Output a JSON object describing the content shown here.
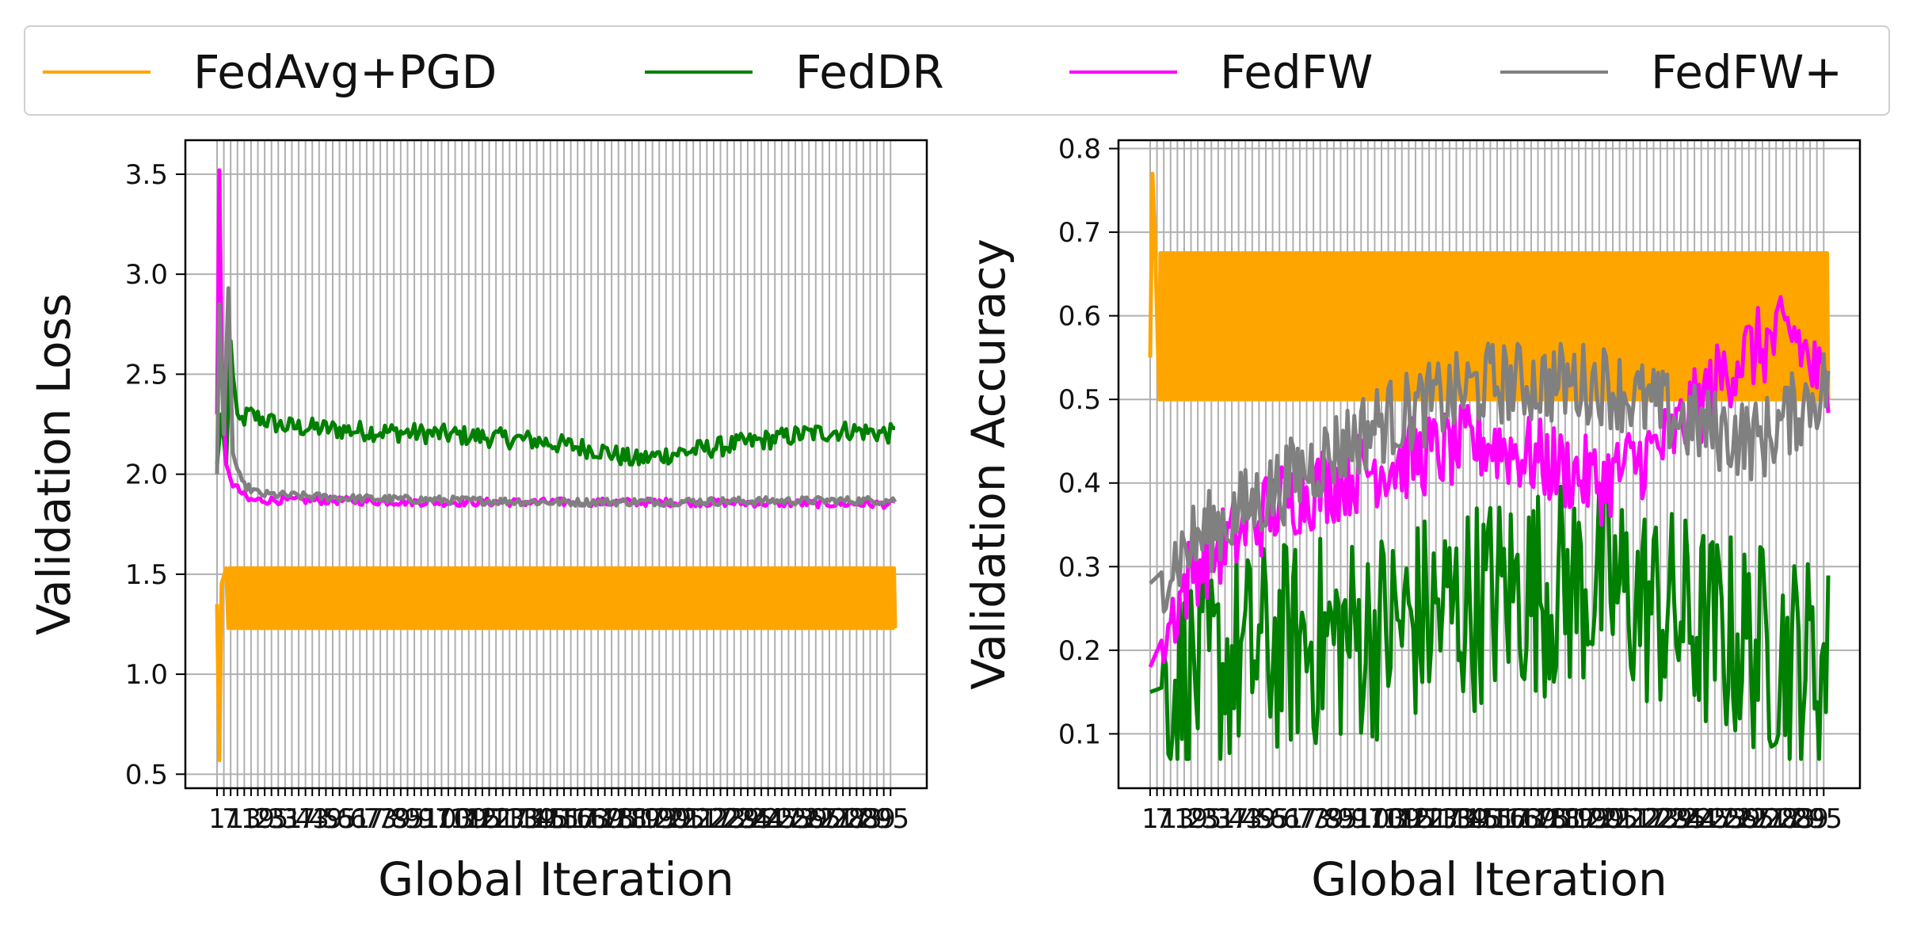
{
  "legend": {
    "items": [
      {
        "label": "FedAvg+PGD",
        "color": "#FFA500"
      },
      {
        "label": "FedDR",
        "color": "#008000"
      },
      {
        "label": "FedFW",
        "color": "#FF00FF"
      },
      {
        "label": "FedFW+",
        "color": "#808080"
      }
    ]
  },
  "chart_data": [
    {
      "type": "line",
      "xlabel": "Global Iteration",
      "ylabel": "Validation Loss",
      "xlim": [
        1,
        300
      ],
      "ylim": [
        0.43,
        3.67
      ],
      "yticks": [
        0.5,
        1.0,
        1.5,
        2.0,
        2.5,
        3.0,
        3.5
      ],
      "ytick_labels": [
        "0.5",
        "1.0",
        "1.5",
        "2.0",
        "2.5",
        "3.0",
        "3.5"
      ],
      "grid": true,
      "series": [
        {
          "name": "FedAvg+PGD",
          "color": "#FFA500",
          "pattern": "oscillating_band",
          "points": [
            [
              1,
              1.35
            ],
            [
              2,
              0.57
            ],
            [
              3,
              1.45
            ],
            [
              5,
              1.53
            ]
          ],
          "band": [
            1.23,
            1.53
          ],
          "band_start": 6
        },
        {
          "name": "FedDR",
          "color": "#008000",
          "points": [
            [
              1,
              2.05
            ],
            [
              3,
              2.3
            ],
            [
              5,
              2.05
            ],
            [
              7,
              2.65
            ],
            [
              10,
              2.25
            ],
            [
              15,
              2.3
            ],
            [
              30,
              2.24
            ],
            [
              60,
              2.22
            ],
            [
              100,
              2.2
            ],
            [
              140,
              2.17
            ],
            [
              170,
              2.12
            ],
            [
              185,
              2.07
            ],
            [
              200,
              2.1
            ],
            [
              230,
              2.15
            ],
            [
              260,
              2.2
            ],
            [
              280,
              2.22
            ],
            [
              300,
              2.2
            ]
          ],
          "noise": 0.05
        },
        {
          "name": "FedFW",
          "color": "#FF00FF",
          "points": [
            [
              1,
              2.3
            ],
            [
              2,
              3.52
            ],
            [
              3,
              2.6
            ],
            [
              5,
              2.05
            ],
            [
              8,
              1.95
            ],
            [
              15,
              1.87
            ],
            [
              40,
              1.87
            ],
            [
              100,
              1.86
            ],
            [
              200,
              1.86
            ],
            [
              300,
              1.85
            ]
          ],
          "noise": 0.02
        },
        {
          "name": "FedFW+",
          "color": "#808080",
          "points": [
            [
              1,
              2.0
            ],
            [
              2,
              2.85
            ],
            [
              4,
              2.2
            ],
            [
              6,
              2.93
            ],
            [
              8,
              2.1
            ],
            [
              12,
              1.95
            ],
            [
              20,
              1.9
            ],
            [
              60,
              1.88
            ],
            [
              150,
              1.86
            ],
            [
              300,
              1.87
            ]
          ],
          "noise": 0.02
        }
      ]
    },
    {
      "type": "line",
      "xlabel": "Global Iteration",
      "ylabel": "Validation Accuracy",
      "xlim": [
        1,
        300
      ],
      "ylim": [
        0.035,
        0.81
      ],
      "yticks": [
        0.1,
        0.2,
        0.3,
        0.4,
        0.5,
        0.6,
        0.7,
        0.8
      ],
      "ytick_labels": [
        "0.1",
        "0.2",
        "0.3",
        "0.4",
        "0.5",
        "0.6",
        "0.7",
        "0.8"
      ],
      "grid": true,
      "series": [
        {
          "name": "FedAvg+PGD",
          "color": "#FFA500",
          "pattern": "oscillating_band",
          "points": [
            [
              1,
              0.55
            ],
            [
              2,
              0.77
            ],
            [
              3,
              0.7
            ],
            [
              4,
              0.6
            ]
          ],
          "band": [
            0.5,
            0.675
          ],
          "band_start": 5
        },
        {
          "name": "FedDR",
          "color": "#008000",
          "points": [
            [
              1,
              0.15
            ],
            [
              50,
              0.2
            ],
            [
              100,
              0.22
            ],
            [
              160,
              0.27
            ],
            [
              200,
              0.28
            ],
            [
              250,
              0.22
            ],
            [
              300,
              0.18
            ]
          ],
          "noise": 0.13,
          "ylo": 0.07,
          "yhi": 0.74
        },
        {
          "name": "FedFW",
          "color": "#FF00FF",
          "points": [
            [
              1,
              0.18
            ],
            [
              20,
              0.3
            ],
            [
              60,
              0.38
            ],
            [
              100,
              0.42
            ],
            [
              150,
              0.45
            ],
            [
              200,
              0.4
            ],
            [
              230,
              0.45
            ],
            [
              260,
              0.55
            ],
            [
              285,
              0.58
            ],
            [
              300,
              0.5
            ]
          ],
          "noise": 0.05
        },
        {
          "name": "FedFW+",
          "color": "#808080",
          "points": [
            [
              1,
              0.28
            ],
            [
              20,
              0.33
            ],
            [
              60,
              0.4
            ],
            [
              100,
              0.47
            ],
            [
              150,
              0.52
            ],
            [
              200,
              0.52
            ],
            [
              240,
              0.47
            ],
            [
              270,
              0.45
            ],
            [
              300,
              0.52
            ]
          ],
          "noise": 0.05
        }
      ]
    }
  ]
}
